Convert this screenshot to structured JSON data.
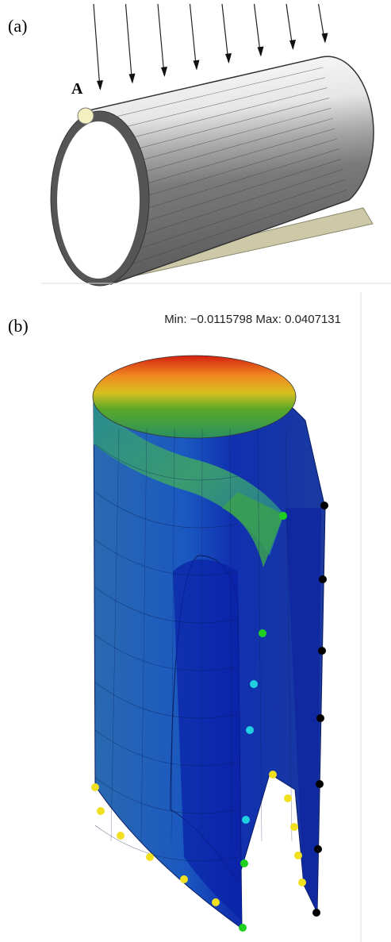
{
  "panel_a": {
    "label": "(a)",
    "point_label": "A"
  },
  "panel_b": {
    "label": "(b)",
    "range_text": "Min: −0.0115798 Max: 0.0407131"
  }
}
